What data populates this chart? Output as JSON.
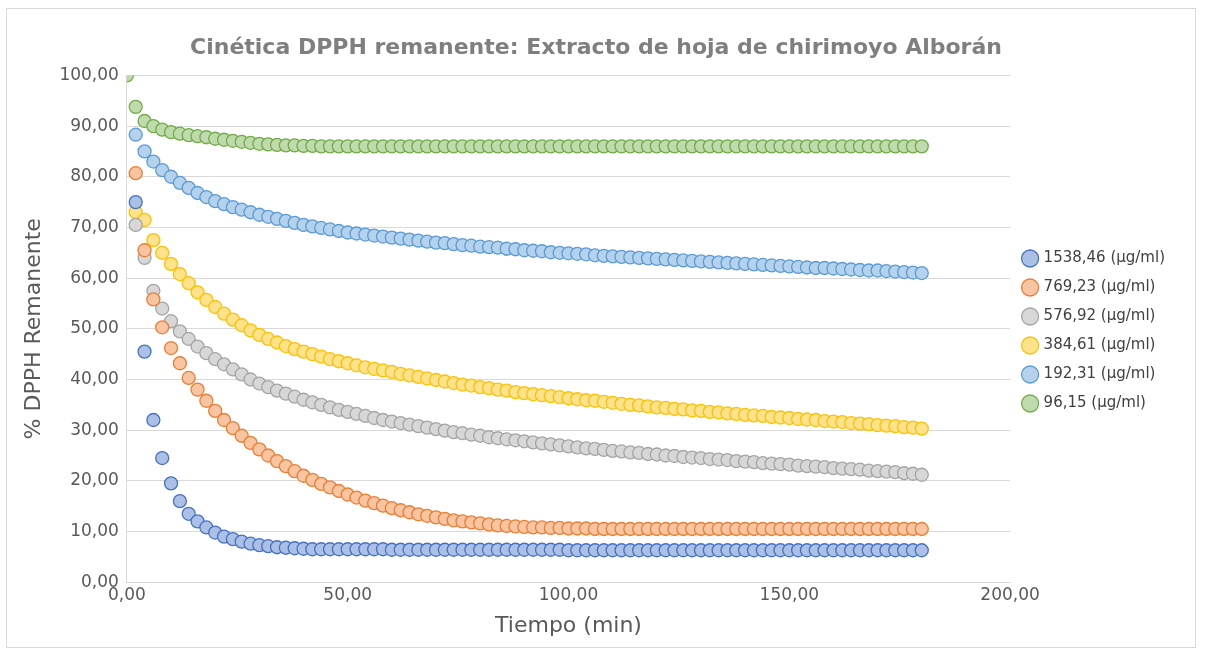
{
  "chart_data": {
    "type": "scatter",
    "title": "Cinética DPPH remanente: Extracto de hoja de chirimoyo Alborán",
    "xlabel": "Tiempo (min)",
    "ylabel": "% DPPH Remanente",
    "x": [
      0,
      2,
      4,
      6,
      8,
      10,
      12,
      14,
      16,
      18,
      20,
      22,
      24,
      26,
      28,
      30,
      32,
      34,
      36,
      38,
      40,
      42,
      44,
      46,
      48,
      50,
      52,
      54,
      56,
      58,
      60,
      62,
      64,
      66,
      68,
      70,
      72,
      74,
      76,
      78,
      80,
      82,
      84,
      86,
      88,
      90,
      92,
      94,
      96,
      98,
      100,
      102,
      104,
      106,
      108,
      110,
      112,
      114,
      116,
      118,
      120,
      122,
      124,
      126,
      128,
      130,
      132,
      134,
      136,
      138,
      140,
      142,
      144,
      146,
      148,
      150,
      152,
      154,
      156,
      158,
      160,
      162,
      164,
      166,
      168,
      170,
      172,
      174,
      176,
      178,
      180
    ],
    "series": [
      {
        "name": "1538,46 (µg/ml)",
        "color": "#4472c4",
        "values": [
          null,
          75,
          45.5,
          32,
          24.5,
          19.5,
          16,
          13.5,
          12,
          10.8,
          9.8,
          9,
          8.5,
          8,
          7.6,
          7.3,
          7.1,
          6.9,
          6.8,
          6.7,
          6.6,
          6.5,
          6.5,
          6.5,
          6.5,
          6.5,
          6.5,
          6.5,
          6.5,
          6.5,
          6.4,
          6.4,
          6.4,
          6.4,
          6.4,
          6.4,
          6.4,
          6.4,
          6.4,
          6.4,
          6.4,
          6.4,
          6.4,
          6.4,
          6.4,
          6.4,
          6.4,
          6.4,
          6.4,
          6.4,
          6.3,
          6.3,
          6.3,
          6.3,
          6.3,
          6.3,
          6.3,
          6.3,
          6.3,
          6.3,
          6.3,
          6.3,
          6.3,
          6.3,
          6.3,
          6.3,
          6.3,
          6.3,
          6.3,
          6.3,
          6.3,
          6.3,
          6.3,
          6.3,
          6.3,
          6.3,
          6.3,
          6.3,
          6.3,
          6.3,
          6.3,
          6.3,
          6.3,
          6.3,
          6.3,
          6.3,
          6.3,
          6.3,
          6.3,
          6.3,
          6.3
        ]
      },
      {
        "name": "769,23 (µg/ml)",
        "color": "#ed7d31",
        "values": [
          null,
          80.7,
          65.5,
          55.8,
          50.3,
          46.2,
          43.2,
          40.3,
          38,
          35.8,
          33.8,
          32,
          30.4,
          28.9,
          27.5,
          26.2,
          25,
          23.9,
          22.9,
          21.9,
          21,
          20.2,
          19.4,
          18.7,
          18,
          17.3,
          16.7,
          16.1,
          15.6,
          15.1,
          14.6,
          14.2,
          13.8,
          13.4,
          13.1,
          12.8,
          12.5,
          12.2,
          12,
          11.8,
          11.6,
          11.4,
          11.2,
          11.1,
          11,
          10.9,
          10.8,
          10.8,
          10.7,
          10.7,
          10.6,
          10.6,
          10.6,
          10.5,
          10.5,
          10.5,
          10.5,
          10.5,
          10.5,
          10.5,
          10.5,
          10.5,
          10.5,
          10.5,
          10.5,
          10.5,
          10.5,
          10.5,
          10.5,
          10.5,
          10.5,
          10.5,
          10.5,
          10.5,
          10.5,
          10.5,
          10.5,
          10.5,
          10.5,
          10.5,
          10.5,
          10.5,
          10.5,
          10.5,
          10.5,
          10.5,
          10.5,
          10.5,
          10.5,
          10.5,
          10.5
        ]
      },
      {
        "name": "576,92 (µg/ml)",
        "color": "#a5a5a5",
        "values": [
          null,
          70.5,
          64,
          57.5,
          54,
          51.5,
          49.5,
          48,
          46.5,
          45.2,
          44,
          43,
          42,
          41,
          40,
          39.2,
          38.5,
          37.8,
          37.2,
          36.6,
          36,
          35.5,
          35,
          34.5,
          34,
          33.6,
          33.2,
          32.8,
          32.4,
          32,
          31.7,
          31.4,
          31.1,
          30.8,
          30.5,
          30.2,
          29.9,
          29.6,
          29.4,
          29.1,
          28.9,
          28.6,
          28.4,
          28.2,
          28,
          27.8,
          27.6,
          27.4,
          27.2,
          27,
          26.8,
          26.6,
          26.4,
          26.3,
          26.1,
          25.9,
          25.8,
          25.6,
          25.5,
          25.3,
          25.2,
          25,
          24.9,
          24.7,
          24.6,
          24.5,
          24.3,
          24.2,
          24.1,
          23.9,
          23.8,
          23.7,
          23.5,
          23.4,
          23.3,
          23.2,
          23,
          22.9,
          22.8,
          22.7,
          22.5,
          22.4,
          22.3,
          22.2,
          22,
          21.9,
          21.8,
          21.7,
          21.5,
          21.4,
          21.2
        ]
      },
      {
        "name": "384,61 (µg/ml)",
        "color": "#ffc000",
        "values": [
          null,
          73,
          71.5,
          67.5,
          65,
          62.8,
          60.8,
          59,
          57.2,
          55.7,
          54.3,
          53,
          51.8,
          50.7,
          49.7,
          48.8,
          48,
          47.3,
          46.6,
          46,
          45.5,
          45,
          44.5,
          44,
          43.6,
          43.2,
          42.8,
          42.4,
          42.1,
          41.8,
          41.5,
          41.1,
          40.8,
          40.5,
          40.2,
          39.9,
          39.6,
          39.3,
          39,
          38.8,
          38.5,
          38.3,
          38,
          37.8,
          37.5,
          37.3,
          37.1,
          36.9,
          36.7,
          36.5,
          36.3,
          36.1,
          35.9,
          35.8,
          35.6,
          35.4,
          35.2,
          35,
          34.9,
          34.7,
          34.5,
          34.4,
          34.2,
          34.1,
          33.9,
          33.8,
          33.6,
          33.5,
          33.3,
          33.2,
          33,
          32.9,
          32.8,
          32.6,
          32.5,
          32.4,
          32.2,
          32.1,
          32,
          31.8,
          31.7,
          31.6,
          31.4,
          31.3,
          31.2,
          31,
          30.9,
          30.8,
          30.6,
          30.5,
          30.3
        ]
      },
      {
        "name": "192,31 (µg/ml)",
        "color": "#5b9bd5",
        "values": [
          null,
          88.3,
          85,
          83,
          81.3,
          80,
          78.8,
          77.8,
          76.8,
          76,
          75.2,
          74.6,
          74,
          73.5,
          73,
          72.5,
          72.1,
          71.7,
          71.3,
          70.9,
          70.5,
          70.2,
          69.9,
          69.6,
          69.3,
          69,
          68.8,
          68.6,
          68.4,
          68.2,
          68,
          67.8,
          67.6,
          67.4,
          67.2,
          67,
          66.9,
          66.7,
          66.5,
          66.4,
          66.2,
          66.1,
          66,
          65.8,
          65.7,
          65.5,
          65.4,
          65.3,
          65.1,
          65,
          64.9,
          64.8,
          64.7,
          64.5,
          64.4,
          64.3,
          64.2,
          64.1,
          64,
          63.9,
          63.8,
          63.7,
          63.6,
          63.5,
          63.4,
          63.3,
          63.2,
          63.1,
          63,
          62.9,
          62.8,
          62.7,
          62.6,
          62.5,
          62.4,
          62.3,
          62.2,
          62.1,
          62,
          62,
          61.9,
          61.8,
          61.7,
          61.6,
          61.5,
          61.5,
          61.4,
          61.3,
          61.2,
          61.1,
          61
        ]
      },
      {
        "name": "96,15 (µg/ml)",
        "color": "#70ad47",
        "values": [
          100,
          93.8,
          91,
          90,
          89.3,
          88.8,
          88.5,
          88.2,
          88,
          87.8,
          87.5,
          87.3,
          87.1,
          86.9,
          86.7,
          86.5,
          86.4,
          86.3,
          86.2,
          86.2,
          86.1,
          86.1,
          86,
          86,
          86,
          86,
          86,
          86,
          86,
          86,
          86,
          86,
          86,
          86,
          86,
          86,
          86,
          86,
          86,
          86,
          86,
          86,
          86,
          86,
          86,
          86,
          86,
          86,
          86,
          86,
          86,
          86,
          86,
          86,
          86,
          86,
          86,
          86,
          86,
          86,
          86,
          86,
          86,
          86,
          86,
          86,
          86,
          86,
          86,
          86,
          86,
          86,
          86,
          86,
          86,
          86,
          86,
          86,
          86,
          86,
          86,
          86,
          86,
          86,
          86,
          86,
          86,
          86,
          86,
          86,
          86
        ]
      }
    ],
    "xlim": [
      0,
      200
    ],
    "xticks": [
      {
        "value": 0,
        "label": "0,00"
      },
      {
        "value": 50,
        "label": "50,00"
      },
      {
        "value": 100,
        "label": "100,00"
      },
      {
        "value": 150,
        "label": "150,00"
      },
      {
        "value": 200,
        "label": "200,00"
      }
    ],
    "ylim": [
      0,
      100
    ],
    "yticks": [
      {
        "value": 0,
        "label": "0,00"
      },
      {
        "value": 10,
        "label": "10,00"
      },
      {
        "value": 20,
        "label": "20,00"
      },
      {
        "value": 30,
        "label": "30,00"
      },
      {
        "value": 40,
        "label": "40,00"
      },
      {
        "value": 50,
        "label": "50,00"
      },
      {
        "value": 60,
        "label": "60,00"
      },
      {
        "value": 70,
        "label": "70,00"
      },
      {
        "value": 80,
        "label": "80,00"
      },
      {
        "value": 90,
        "label": "90,00"
      },
      {
        "value": 100,
        "label": "100,00"
      }
    ],
    "grid": "y",
    "legend": "right",
    "marker": "circle"
  }
}
